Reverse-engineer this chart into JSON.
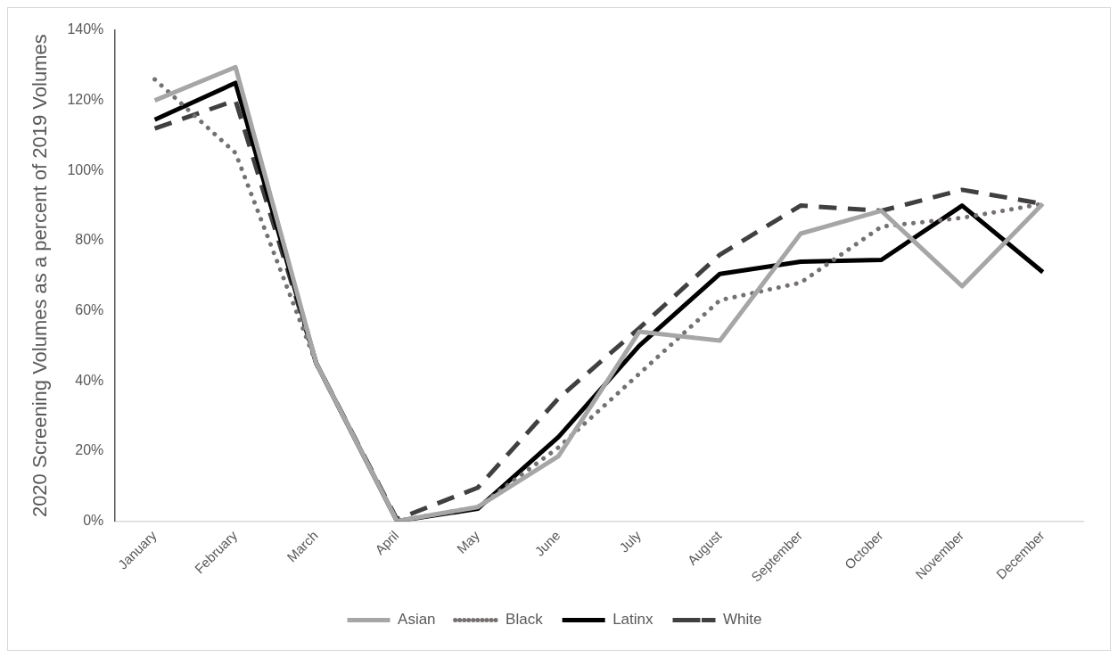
{
  "chart_data": {
    "type": "line",
    "ylabel": "2020 Screening Volumes as a percent of 2019 Volumes",
    "categories": [
      "January",
      "February",
      "March",
      "April",
      "May",
      "June",
      "July",
      "August",
      "September",
      "October",
      "November",
      "December"
    ],
    "series": [
      {
        "name": "Asian",
        "color": "#a6a6a6",
        "line_style": "solid",
        "values": [
          120,
          129.5,
          45,
          0,
          4,
          18.5,
          54,
          51.5,
          82,
          88.5,
          67,
          90.5
        ]
      },
      {
        "name": "Black",
        "color": "#767171",
        "line_style": "dotted",
        "values": [
          126,
          105,
          45,
          0,
          4,
          21,
          42,
          63,
          68,
          84,
          86.5,
          90.5
        ]
      },
      {
        "name": "Latinx",
        "color": "#000000",
        "line_style": "solid",
        "values": [
          114.5,
          125,
          45,
          0,
          3.5,
          24,
          50,
          70.5,
          74,
          74.5,
          90,
          71
        ]
      },
      {
        "name": "White",
        "color": "#404040",
        "line_style": "dashed",
        "values": [
          112,
          120,
          45,
          0.5,
          9.5,
          35,
          55,
          76,
          90,
          88.5,
          94.5,
          90.5
        ]
      }
    ],
    "ylim": [
      0,
      140
    ],
    "yticks": [
      {
        "value": 0,
        "label": "0%"
      },
      {
        "value": 20,
        "label": "20%"
      },
      {
        "value": 40,
        "label": "40%"
      },
      {
        "value": 60,
        "label": "60%"
      },
      {
        "value": 80,
        "label": "80%"
      },
      {
        "value": 100,
        "label": "100%"
      },
      {
        "value": 120,
        "label": "120%"
      },
      {
        "value": 140,
        "label": "140%"
      }
    ],
    "grid": false,
    "legend": "bottom",
    "marker": "none"
  }
}
